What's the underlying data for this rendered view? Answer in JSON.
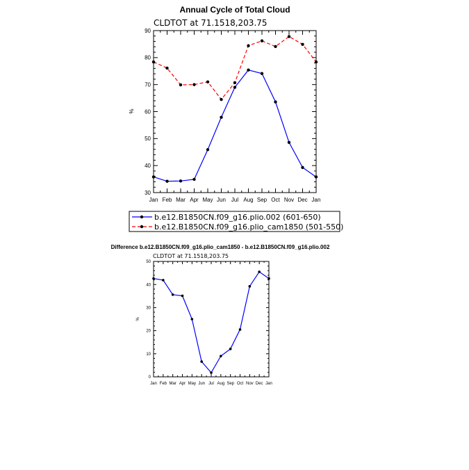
{
  "chart_data": [
    {
      "type": "line",
      "title": "Annual Cycle of Total Cloud",
      "subtitle": "CLDTOT at 71.1518,203.75",
      "ylabel": "%",
      "xlabel": "",
      "categories": [
        "Jan",
        "Feb",
        "Mar",
        "Apr",
        "May",
        "Jun",
        "Jul",
        "Aug",
        "Sep",
        "Oct",
        "Nov",
        "Dec",
        "Jan"
      ],
      "ylim": [
        30,
        90
      ],
      "yticks": [
        "30",
        "40",
        "50",
        "60",
        "70",
        "80",
        "90"
      ],
      "legend_position": "bottom",
      "series": [
        {
          "name": "b.e12.B1850CN.f09_g16.plio.002 (601-650)",
          "color": "#0000ff",
          "dash": "solid",
          "values": [
            35.8,
            34.2,
            34.3,
            34.9,
            45.9,
            57.9,
            69.0,
            75.4,
            74.1,
            63.6,
            48.6,
            39.3,
            35.8
          ]
        },
        {
          "name": "b.e12.B1850CN.f09_g16.plio_cam1850 (501-550)",
          "color": "#ff0000",
          "dash": "dashed",
          "values": [
            78.4,
            76.1,
            69.9,
            70.0,
            71.0,
            64.5,
            70.7,
            84.4,
            86.2,
            84.1,
            87.8,
            84.9,
            78.4
          ]
        }
      ]
    },
    {
      "type": "line",
      "title": "Difference b.e12.B1850CN.f09_g16.plio_cam1850 - b.e12.B1850CN.f09_g16.plio.002",
      "subtitle": "CLDTOT at 71.1518,203.75",
      "ylabel": "%",
      "xlabel": "",
      "categories": [
        "Jan",
        "Feb",
        "Mar",
        "Apr",
        "May",
        "Jun",
        "Jul",
        "Aug",
        "Sep",
        "Oct",
        "Nov",
        "Dec",
        "Jan"
      ],
      "ylim": [
        0,
        50
      ],
      "yticks": [
        "0",
        "10",
        "20",
        "30",
        "40",
        "50"
      ],
      "series": [
        {
          "name": "",
          "color": "#0000ff",
          "dash": "solid",
          "values": [
            42.6,
            41.9,
            35.6,
            35.1,
            25.0,
            6.6,
            1.8,
            9.0,
            12.1,
            20.5,
            39.2,
            45.5,
            42.6
          ]
        }
      ]
    }
  ]
}
